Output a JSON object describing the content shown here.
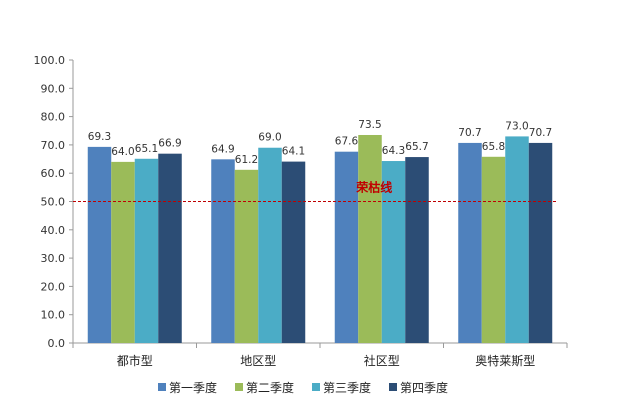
{
  "chart_data": {
    "type": "bar",
    "title": "",
    "xlabel": "",
    "ylabel": "",
    "categories": [
      "都市型",
      "地区型",
      "社区型",
      "奥特莱斯型"
    ],
    "series": [
      {
        "name": "第一季度",
        "color": "#4f81bd",
        "values": [
          69.3,
          64.9,
          67.6,
          70.7
        ]
      },
      {
        "name": "第二季度",
        "color": "#9bbb59",
        "values": [
          64.0,
          61.2,
          73.5,
          65.8
        ]
      },
      {
        "name": "第三季度",
        "color": "#4bacc6",
        "values": [
          65.1,
          69.0,
          64.3,
          73.0
        ]
      },
      {
        "name": "第四季度",
        "color": "#2c4d75",
        "values": [
          66.9,
          64.1,
          65.7,
          70.7
        ]
      }
    ],
    "ylim": [
      0,
      100
    ],
    "yticks": [
      0,
      10,
      20,
      30,
      40,
      50,
      60,
      70,
      80,
      90,
      100
    ],
    "reference_line": {
      "label": "荣枯线",
      "value": 50,
      "color": "#c00000",
      "style": "dashed"
    },
    "grid": false,
    "legend_position": "bottom",
    "data_labels": true
  }
}
